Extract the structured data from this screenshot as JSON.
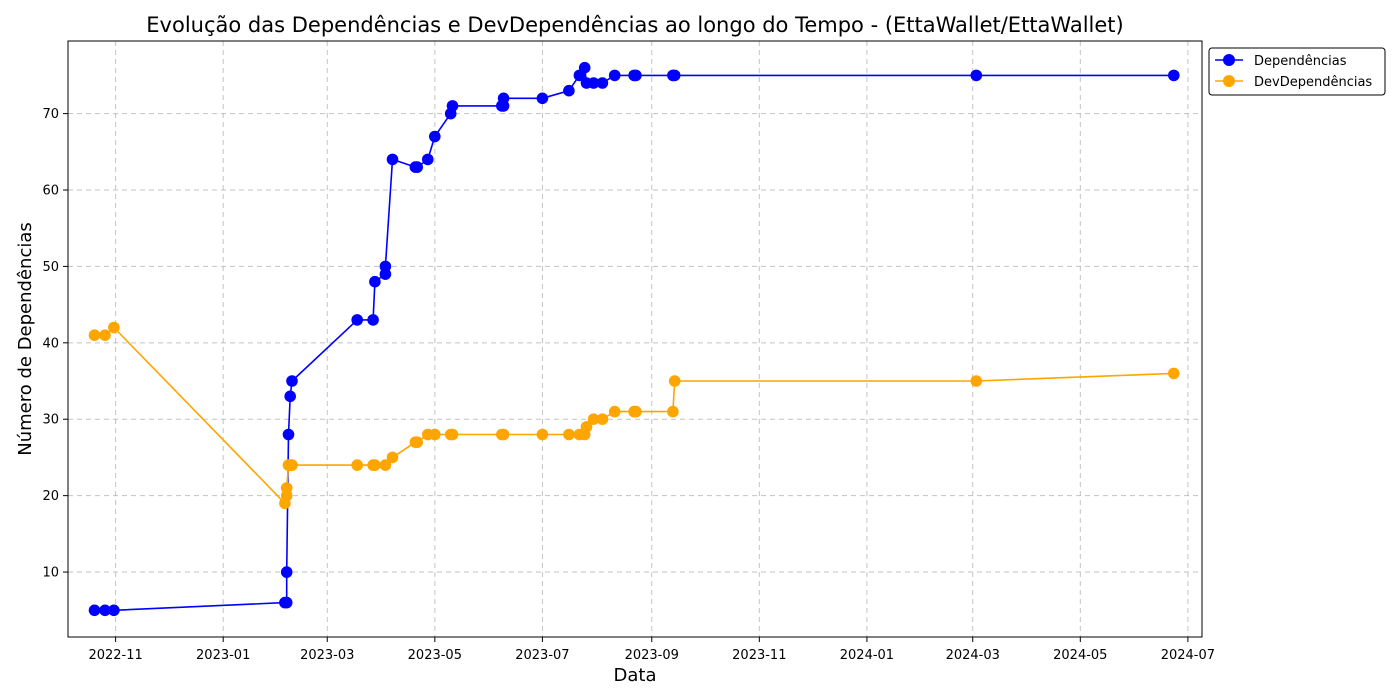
{
  "chart_data": {
    "type": "line",
    "title": "Evolução das Dependências e DevDependências ao longo do Tempo - (EttaWallet/EttaWallet)",
    "xlabel": "Data",
    "ylabel": "Número de Dependências",
    "x_ticks": [
      "2022-11",
      "2023-01",
      "2023-03",
      "2023-05",
      "2023-07",
      "2023-09",
      "2023-11",
      "2024-01",
      "2024-03",
      "2024-05",
      "2024-07"
    ],
    "y_ticks": [
      10,
      20,
      30,
      40,
      50,
      60,
      70
    ],
    "xlim": [
      "2022-10-05",
      "2024-07-09"
    ],
    "ylim": [
      1.5,
      79.5
    ],
    "grid": true,
    "legend_position": "outside-top-right",
    "series": [
      {
        "name": "Dependências",
        "color": "#0000ff",
        "points": [
          {
            "x": "2022-10-20",
            "y": 5
          },
          {
            "x": "2022-10-26",
            "y": 5
          },
          {
            "x": "2022-10-31",
            "y": 5
          },
          {
            "x": "2023-02-05",
            "y": 6
          },
          {
            "x": "2023-02-06",
            "y": 6
          },
          {
            "x": "2023-02-06",
            "y": 10
          },
          {
            "x": "2023-02-07",
            "y": 28
          },
          {
            "x": "2023-02-08",
            "y": 33
          },
          {
            "x": "2023-02-09",
            "y": 35
          },
          {
            "x": "2023-03-18",
            "y": 43
          },
          {
            "x": "2023-03-27",
            "y": 43
          },
          {
            "x": "2023-03-28",
            "y": 48
          },
          {
            "x": "2023-04-03",
            "y": 49
          },
          {
            "x": "2023-04-03",
            "y": 50
          },
          {
            "x": "2023-04-07",
            "y": 64
          },
          {
            "x": "2023-04-20",
            "y": 63
          },
          {
            "x": "2023-04-21",
            "y": 63
          },
          {
            "x": "2023-04-27",
            "y": 64
          },
          {
            "x": "2023-05-01",
            "y": 67
          },
          {
            "x": "2023-05-10",
            "y": 70
          },
          {
            "x": "2023-05-11",
            "y": 71
          },
          {
            "x": "2023-06-08",
            "y": 71
          },
          {
            "x": "2023-06-09",
            "y": 71
          },
          {
            "x": "2023-06-09",
            "y": 72
          },
          {
            "x": "2023-07-01",
            "y": 72
          },
          {
            "x": "2023-07-16",
            "y": 73
          },
          {
            "x": "2023-07-22",
            "y": 75
          },
          {
            "x": "2023-07-25",
            "y": 76
          },
          {
            "x": "2023-07-26",
            "y": 74
          },
          {
            "x": "2023-07-30",
            "y": 74
          },
          {
            "x": "2023-08-04",
            "y": 74
          },
          {
            "x": "2023-08-11",
            "y": 75
          },
          {
            "x": "2023-08-22",
            "y": 75
          },
          {
            "x": "2023-08-23",
            "y": 75
          },
          {
            "x": "2023-09-13",
            "y": 75
          },
          {
            "x": "2023-09-14",
            "y": 75
          },
          {
            "x": "2024-03-03",
            "y": 75
          },
          {
            "x": "2024-06-23",
            "y": 75
          }
        ]
      },
      {
        "name": "DevDependências",
        "color": "#ffa500",
        "points": [
          {
            "x": "2022-10-20",
            "y": 41
          },
          {
            "x": "2022-10-26",
            "y": 41
          },
          {
            "x": "2022-10-31",
            "y": 42
          },
          {
            "x": "2023-02-05",
            "y": 19
          },
          {
            "x": "2023-02-06",
            "y": 20
          },
          {
            "x": "2023-02-06",
            "y": 21
          },
          {
            "x": "2023-02-07",
            "y": 24
          },
          {
            "x": "2023-02-08",
            "y": 24
          },
          {
            "x": "2023-02-09",
            "y": 24
          },
          {
            "x": "2023-03-18",
            "y": 24
          },
          {
            "x": "2023-03-27",
            "y": 24
          },
          {
            "x": "2023-03-28",
            "y": 24
          },
          {
            "x": "2023-04-03",
            "y": 24
          },
          {
            "x": "2023-04-07",
            "y": 25
          },
          {
            "x": "2023-04-20",
            "y": 27
          },
          {
            "x": "2023-04-21",
            "y": 27
          },
          {
            "x": "2023-04-27",
            "y": 28
          },
          {
            "x": "2023-05-01",
            "y": 28
          },
          {
            "x": "2023-05-10",
            "y": 28
          },
          {
            "x": "2023-05-11",
            "y": 28
          },
          {
            "x": "2023-06-08",
            "y": 28
          },
          {
            "x": "2023-06-09",
            "y": 28
          },
          {
            "x": "2023-07-01",
            "y": 28
          },
          {
            "x": "2023-07-16",
            "y": 28
          },
          {
            "x": "2023-07-22",
            "y": 28
          },
          {
            "x": "2023-07-25",
            "y": 28
          },
          {
            "x": "2023-07-26",
            "y": 29
          },
          {
            "x": "2023-07-30",
            "y": 30
          },
          {
            "x": "2023-08-04",
            "y": 30
          },
          {
            "x": "2023-08-11",
            "y": 31
          },
          {
            "x": "2023-08-22",
            "y": 31
          },
          {
            "x": "2023-08-23",
            "y": 31
          },
          {
            "x": "2023-09-13",
            "y": 31
          },
          {
            "x": "2023-09-14",
            "y": 35
          },
          {
            "x": "2024-03-03",
            "y": 35
          },
          {
            "x": "2024-06-23",
            "y": 36
          }
        ]
      }
    ]
  }
}
